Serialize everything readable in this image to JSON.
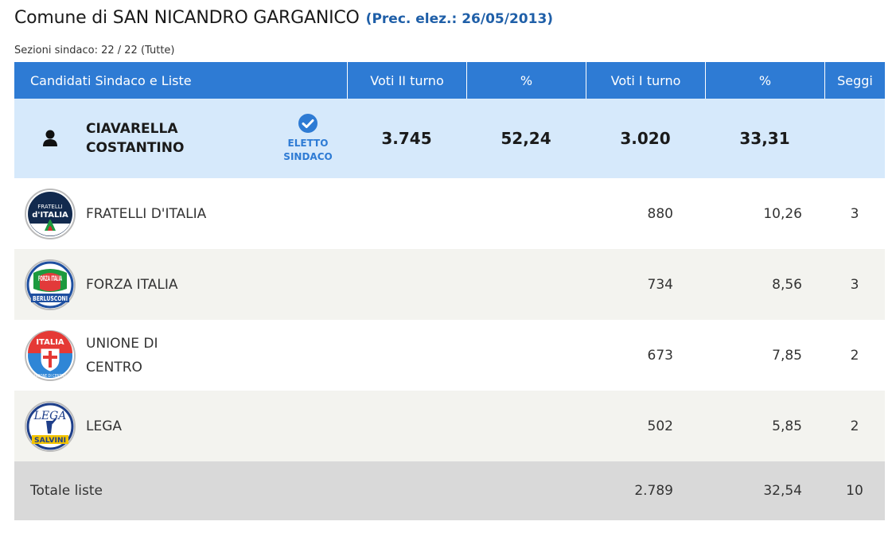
{
  "header": {
    "title": "Comune di SAN NICANDRO GARGANICO",
    "prev_election": "(Prec. elez.: 26/05/2013)",
    "sezioni": "Sezioni sindaco: 22 / 22 (Tutte)"
  },
  "columns": [
    "Candidati Sindaco e Liste",
    "Voti II turno",
    "%",
    "Voti I turno",
    "%",
    "Seggi"
  ],
  "candidate": {
    "name_line1": "CIAVARELLA",
    "name_line2": "COSTANTINO",
    "status_line1": "ELETTO",
    "status_line2": "SINDACO",
    "votes_round2": "3.745",
    "pct_round2": "52,24",
    "votes_round1": "3.020",
    "pct_round1": "33,31",
    "seats": ""
  },
  "lists": [
    {
      "name_line1": "FRATELLI D'ITALIA",
      "name_line2": "",
      "votes": "880",
      "pct": "10,26",
      "seats": "3",
      "logo_text_top": "FRATELLI",
      "logo_text_bottom": "d'ITALIA",
      "logo_icon": "fratelli-d-italia-logo"
    },
    {
      "name_line1": "FORZA ITALIA",
      "name_line2": "",
      "votes": "734",
      "pct": "8,56",
      "seats": "3",
      "logo_text_top": "FORZA ITALIA",
      "logo_text_bottom": "BERLUSCONI",
      "logo_icon": "forza-italia-logo"
    },
    {
      "name_line1": "UNIONE DI",
      "name_line2": "CENTRO",
      "votes": "673",
      "pct": "7,85",
      "seats": "2",
      "logo_text_top": "ITALIA",
      "logo_text_bottom": "UNIONE DI CENTRO",
      "logo_icon": "unione-di-centro-logo"
    },
    {
      "name_line1": "LEGA",
      "name_line2": "",
      "votes": "502",
      "pct": "5,85",
      "seats": "2",
      "logo_text_top": "LEGA",
      "logo_text_bottom": "SALVINI",
      "logo_icon": "lega-logo"
    }
  ],
  "totals": {
    "label": "Totale liste",
    "votes": "2.789",
    "pct": "32,54",
    "seats": "10"
  },
  "colors": {
    "header_bg": "#2e7bd4",
    "candidate_bg": "#d6e9fb",
    "accent_blue": "#1f5fa8",
    "total_bg": "#d9d9d9"
  }
}
